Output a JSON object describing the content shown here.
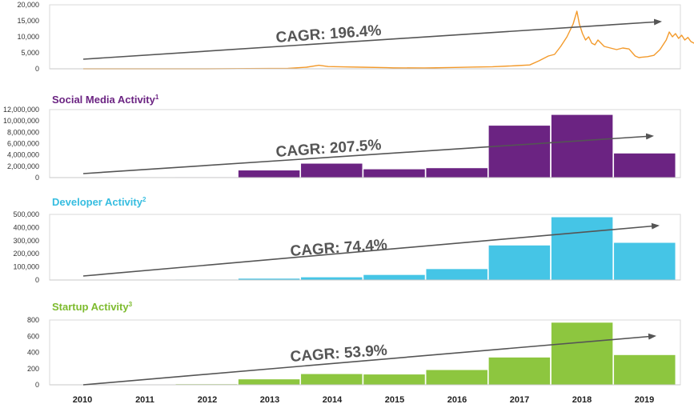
{
  "chart_data": [
    {
      "type": "line",
      "title": "",
      "color": "#f39a2b",
      "ylim": [
        0,
        20000
      ],
      "yticks": [
        "20,000",
        "15,000",
        "10,000",
        "5,000",
        "0"
      ],
      "ytick_values": [
        20000,
        15000,
        10000,
        5000,
        0
      ],
      "x_range": [
        2010,
        2019.5
      ],
      "x": [
        2010.0,
        2011.0,
        2012.0,
        2013.0,
        2013.3,
        2013.6,
        2013.8,
        2013.95,
        2014.2,
        2014.5,
        2014.9,
        2015.0,
        2015.5,
        2015.9,
        2016.0,
        2016.3,
        2016.6,
        2016.9,
        2017.0,
        2017.2,
        2017.35,
        2017.5,
        2017.6,
        2017.7,
        2017.8,
        2017.9,
        2017.96,
        2018.0,
        2018.05,
        2018.1,
        2018.15,
        2018.2,
        2018.25,
        2018.3,
        2018.4,
        2018.5,
        2018.6,
        2018.7,
        2018.8,
        2018.9,
        2018.96,
        2019.0,
        2019.1,
        2019.2,
        2019.3,
        2019.4,
        2019.45,
        2019.5,
        2019.55,
        2019.6,
        2019.65,
        2019.7,
        2019.75,
        2019.8,
        2019.85,
        2019.9,
        2019.95
      ],
      "y": [
        0,
        5,
        10,
        100,
        150,
        500,
        1100,
        700,
        600,
        500,
        350,
        300,
        250,
        400,
        430,
        550,
        650,
        900,
        1000,
        1200,
        2500,
        4000,
        4500,
        7000,
        10000,
        14000,
        18000,
        14000,
        11000,
        9000,
        10000,
        8000,
        7500,
        9000,
        7000,
        6500,
        6000,
        6500,
        6200,
        4000,
        3500,
        3600,
        3800,
        4200,
        6000,
        9000,
        11500,
        10000,
        11000,
        9500,
        10500,
        9000,
        9800,
        8500,
        8000,
        7500,
        6800
      ],
      "annotation": "CAGR: 196.4%"
    },
    {
      "type": "bar",
      "title": "Social Media Activity",
      "footnote": "1",
      "color": "#6b2382",
      "title_color": "#6b2382",
      "ylim": [
        0,
        12000000
      ],
      "yticks": [
        "12,000,000",
        "10,000,000",
        "8,000,000",
        "6,000,000",
        "4,000,000",
        "2,000,000",
        "0"
      ],
      "ytick_values": [
        12000000,
        10000000,
        8000000,
        6000000,
        4000000,
        2000000,
        0
      ],
      "categories": [
        "2010",
        "2011",
        "2012",
        "2013",
        "2014",
        "2015",
        "2016",
        "2017",
        "2018",
        "2019"
      ],
      "values": [
        0,
        50000,
        100000,
        1300000,
        2500000,
        1500000,
        1700000,
        9200000,
        11100000,
        4300000
      ],
      "annotation": "CAGR: 207.5%"
    },
    {
      "type": "bar",
      "title": "Developer Activity",
      "footnote": "2",
      "color": "#45c5e6",
      "title_color": "#36bde0",
      "ylim": [
        0,
        500000
      ],
      "yticks": [
        "500,000",
        "400,000",
        "300,000",
        "200,000",
        "100,000",
        "0"
      ],
      "ytick_values": [
        500000,
        400000,
        300000,
        200000,
        100000,
        0
      ],
      "categories": [
        "2010",
        "2011",
        "2012",
        "2013",
        "2014",
        "2015",
        "2016",
        "2017",
        "2018",
        "2019"
      ],
      "values": [
        0,
        2000,
        5000,
        12000,
        22000,
        40000,
        85000,
        265000,
        480000,
        285000
      ],
      "annotation": "CAGR: 74.4%"
    },
    {
      "type": "bar",
      "title": "Startup Activity",
      "footnote": "3",
      "color": "#8dc63f",
      "title_color": "#7dbb2e",
      "ylim": [
        0,
        800
      ],
      "yticks": [
        "800",
        "600",
        "400",
        "200",
        "0"
      ],
      "ytick_values": [
        800,
        600,
        400,
        200,
        0
      ],
      "categories": [
        "2010",
        "2011",
        "2012",
        "2013",
        "2014",
        "2015",
        "2016",
        "2017",
        "2018",
        "2019"
      ],
      "values": [
        0,
        5,
        10,
        70,
        135,
        130,
        185,
        340,
        770,
        370
      ],
      "annotation": "CAGR: 53.9%"
    }
  ],
  "x_axis_labels": [
    "2010",
    "2011",
    "2012",
    "2013",
    "2014",
    "2015",
    "2016",
    "2017",
    "2018",
    "2019"
  ],
  "colors": {
    "axis": "#cccccc",
    "tick_text": "#333333",
    "arrow": "#555555",
    "annotation": "#555555"
  }
}
